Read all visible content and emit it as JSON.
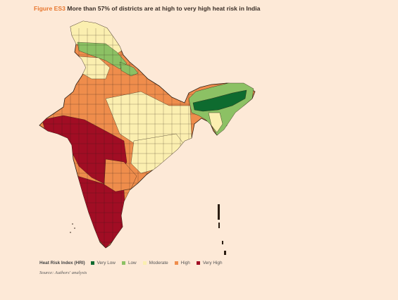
{
  "figure": {
    "label": "Figure ES3",
    "title": "More than 57% of districts are at high to very high heat risk in India"
  },
  "legend": {
    "title": "Heat Risk Index (HRI)",
    "categories": [
      {
        "key": "very_low",
        "label": "Very Low",
        "color": "#0e6b2f"
      },
      {
        "key": "low",
        "label": "Low",
        "color": "#8cc164"
      },
      {
        "key": "moderate",
        "label": "Moderate",
        "color": "#fbefb0"
      },
      {
        "key": "high",
        "label": "High",
        "color": "#ef8d4c"
      },
      {
        "key": "very_high",
        "label": "Very High",
        "color": "#a10d24"
      }
    ]
  },
  "source": "Source: Authors' analysis",
  "map": {
    "region": "India",
    "district_border_color": "#2b1d12"
  }
}
